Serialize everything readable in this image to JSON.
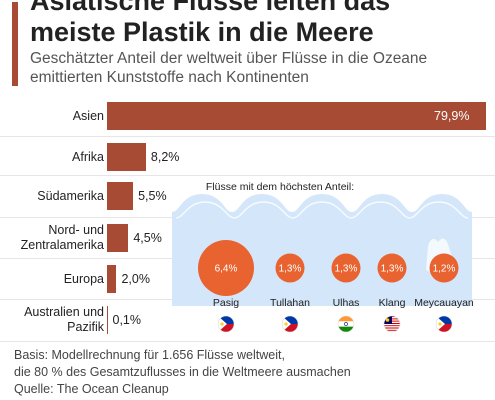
{
  "header": {
    "title_line1": "Asiatische Flüsse leiten das",
    "title_line2": "meiste Plastik in die Meere",
    "subtitle_line1": "Geschätzter Anteil der weltweit über Flüsse in die Ozeane",
    "subtitle_line2": "emittierten Kunststoffe nach Kontinenten"
  },
  "chart_data": [
    {
      "type": "bar",
      "orientation": "horizontal",
      "categories": [
        [
          "Asien"
        ],
        [
          "Afrika"
        ],
        [
          "Südamerika"
        ],
        [
          "Nord- und",
          "Zentralamerika"
        ],
        [
          "Europa"
        ],
        [
          "Australien und",
          "Pazifik"
        ]
      ],
      "values": [
        79.9,
        8.2,
        5.5,
        4.5,
        2.0,
        0.1
      ],
      "value_labels": [
        "79,9%",
        "8,2%",
        "5,5%",
        "4,5%",
        "2,0%",
        "0,1%"
      ],
      "xlim": [
        0,
        79.9
      ],
      "grid": false,
      "color": "#a84b35"
    },
    {
      "type": "bubble",
      "title": "Flüsse mit dem höchsten Anteil:",
      "categories": [
        "Pasig",
        "Tullahan",
        "Ulhas",
        "Klang",
        "Meycauayan"
      ],
      "values": [
        6.4,
        1.3,
        1.3,
        1.3,
        1.2
      ],
      "value_labels": [
        "6,4%",
        "1,3%",
        "1,3%",
        "1,3%",
        "1,2%"
      ],
      "flags": [
        "philippines-flag-icon",
        "philippines-flag-icon",
        "india-flag-icon",
        "malaysia-flag-icon",
        "philippines-flag-icon"
      ],
      "color": "#e8632f",
      "water_color": "#d4e6f9"
    }
  ],
  "footer": {
    "line1": "Basis: Modellrechnung für 1.656 Flüsse weltweit,",
    "line2": "die 80 % des Gesamtzuflusses in die Weltmeere ausmachen",
    "line3": "Quelle: The Ocean Cleanup"
  }
}
